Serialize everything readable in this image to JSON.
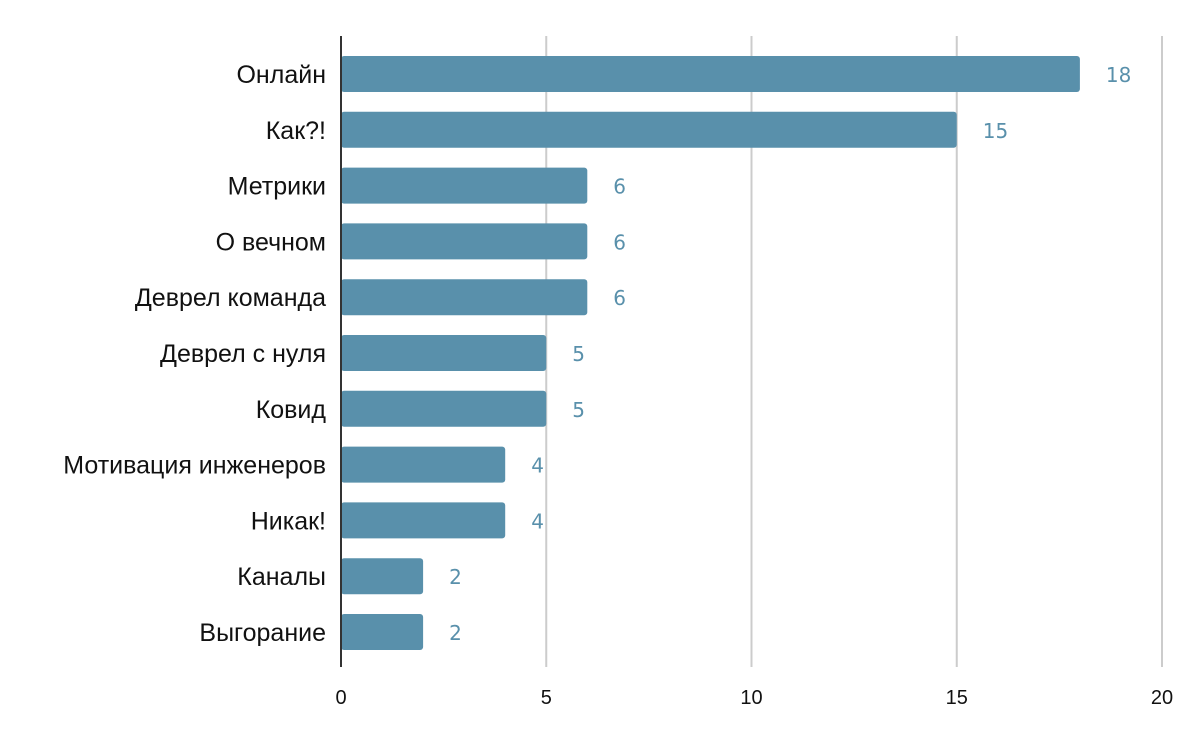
{
  "chart_data": {
    "type": "bar",
    "orientation": "horizontal",
    "categories": [
      "Онлайн",
      "Как?!",
      "Метрики",
      "О вечном",
      "Деврел команда",
      "Деврел с нуля",
      "Ковид",
      "Мотивация инженеров",
      "Никак!",
      "Каналы",
      "Выгорание"
    ],
    "values": [
      18,
      15,
      6,
      6,
      6,
      5,
      5,
      4,
      4,
      2,
      2
    ],
    "xlim": [
      0,
      20
    ],
    "xticks": [
      "0",
      "5",
      "10",
      "15",
      "20"
    ],
    "title": "",
    "xlabel": "",
    "ylabel": "",
    "grid": true,
    "data_labels": true,
    "colors": {
      "bar": "#5990ab",
      "value_label": "#5990ab",
      "grid": "#cccccc",
      "axis": "#333333"
    }
  }
}
